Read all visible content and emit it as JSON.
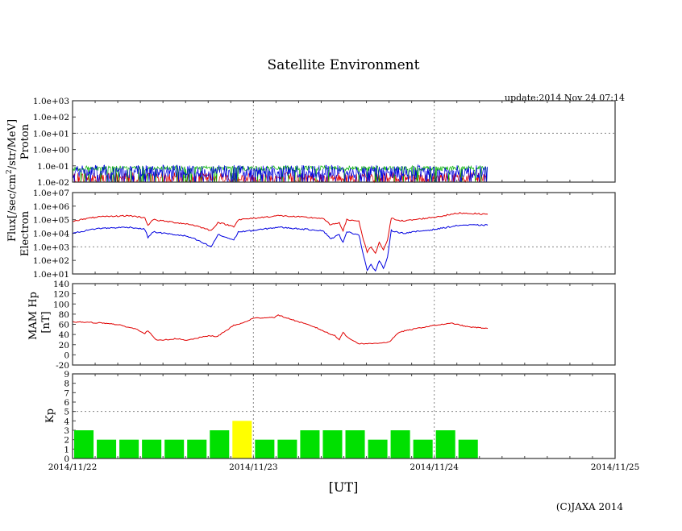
{
  "chart_data": [
    {
      "type": "line",
      "title": "Satellite Environment",
      "update_text": "update:2014 Nov 24 07:14",
      "shared_ylabel": "Flux[/sec/cm2/str/MeV]",
      "shared_ylabel_parts": [
        "Flux[/sec/cm",
        "2",
        "/str/MeV]"
      ],
      "xlabel": "[UT]",
      "x_tick_labels": [
        "2014/11/22",
        "2014/11/23",
        "2014/11/24",
        "2014/11/25"
      ],
      "x_unit": "hours since 2014/11/22 00:00",
      "xlim": [
        0,
        72
      ],
      "copyright": "(C)JAXA 2014"
    },
    {
      "type": "line",
      "panel": "proton",
      "ylabel": "Proton",
      "yscale": "log",
      "ylim_log10": [
        -2,
        3
      ],
      "y_tick_labels": [
        "1.0e-02",
        "1.0e-01",
        "1.0e+00",
        "1.0e+01",
        "1.0e+02",
        "1.0e+03"
      ],
      "series": [
        {
          "name": "proton-red",
          "color": "#e00000",
          "mean_log10": -1.75,
          "spread": 0.35
        },
        {
          "name": "proton-green",
          "color": "#00b000",
          "mean_log10": -1.15,
          "spread": 0.15
        },
        {
          "name": "proton-blue",
          "color": "#0000e0",
          "mean_log10": -1.35,
          "spread": 0.4
        }
      ],
      "end_hour": 55.1
    },
    {
      "type": "line",
      "panel": "electron",
      "ylabel": "Electron",
      "yscale": "log",
      "ylim_log10": [
        1,
        7
      ],
      "y_tick_labels": [
        "1.0e+01",
        "1.0e+02",
        "1.0e+03",
        "1.0e+04",
        "1.0e+05",
        "1.0e+06",
        "1.0e+07"
      ],
      "x": [
        0,
        3.2,
        7.5,
        9.6,
        10,
        10.7,
        15,
        16.1,
        18.4,
        19.3,
        21.4,
        22,
        24,
        27.3,
        33.2,
        34.3,
        35.4,
        35.9,
        36.4,
        38,
        38.6,
        39.1,
        39.6,
        40.2,
        40.7,
        41.25,
        41.8,
        42.3,
        43.9,
        48.2,
        51.4,
        55.1
      ],
      "series": [
        {
          "name": "electron-red",
          "color": "#e00000",
          "log10_values": [
            4.9,
            5.2,
            5.3,
            5.15,
            4.6,
            5.0,
            4.7,
            4.6,
            4.2,
            4.8,
            4.5,
            5.0,
            5.1,
            5.3,
            5.1,
            4.6,
            4.8,
            4.2,
            5.0,
            4.9,
            3.5,
            2.6,
            3.0,
            2.5,
            3.3,
            2.8,
            3.5,
            5.1,
            4.9,
            5.2,
            5.5,
            5.4
          ]
        },
        {
          "name": "electron-blue",
          "color": "#0000e0",
          "log10_values": [
            4.0,
            4.35,
            4.45,
            4.3,
            3.7,
            4.1,
            3.8,
            3.6,
            3.0,
            3.9,
            3.5,
            4.1,
            4.2,
            4.45,
            4.2,
            3.6,
            3.9,
            3.3,
            4.1,
            3.9,
            2.4,
            1.3,
            1.7,
            1.2,
            2.0,
            1.4,
            2.2,
            4.2,
            4.0,
            4.3,
            4.6,
            4.6
          ]
        }
      ]
    },
    {
      "type": "line",
      "panel": "mam-hp",
      "ylabel": [
        "MAM Hp",
        "[nT]"
      ],
      "ylim": [
        -20,
        140
      ],
      "y_tick_labels": [
        "-20",
        "0",
        "20",
        "40",
        "60",
        "80",
        "100",
        "120",
        "140"
      ],
      "x": [
        0,
        3.2,
        4.8,
        6.4,
        8.6,
        9.6,
        10,
        10.7,
        11.25,
        13.9,
        15,
        18.2,
        19.1,
        21.4,
        22.5,
        24,
        26.8,
        27.3,
        30,
        32.1,
        34.3,
        34.8,
        35.4,
        35.9,
        36.4,
        38,
        39.6,
        42,
        43.4,
        46.1,
        48,
        50.4,
        52.5,
        55.1
      ],
      "series": [
        {
          "name": "hp",
          "color": "#e00000",
          "values": [
            65,
            63,
            62,
            58,
            50,
            42,
            48,
            35,
            28,
            32,
            28,
            38,
            35,
            58,
            62,
            72,
            74,
            78,
            65,
            55,
            40,
            38,
            30,
            45,
            35,
            22,
            22,
            25,
            45,
            53,
            58,
            62,
            55,
            52
          ]
        }
      ]
    },
    {
      "type": "bar",
      "panel": "kp",
      "ylabel": "Kp",
      "ylim": [
        0,
        9
      ],
      "y_tick_labels": [
        "0",
        "1",
        "2",
        "3",
        "4",
        "5",
        "6",
        "7",
        "8",
        "9"
      ],
      "bin_hours": 3,
      "values": [
        3,
        2,
        2,
        2,
        2,
        2,
        3,
        4,
        2,
        2,
        3,
        3,
        3,
        2,
        3,
        2,
        3,
        2
      ],
      "color_normal": "#00e000",
      "color_elevated": "#ffff00",
      "elevated_threshold": 4,
      "reference_line": 5
    }
  ]
}
